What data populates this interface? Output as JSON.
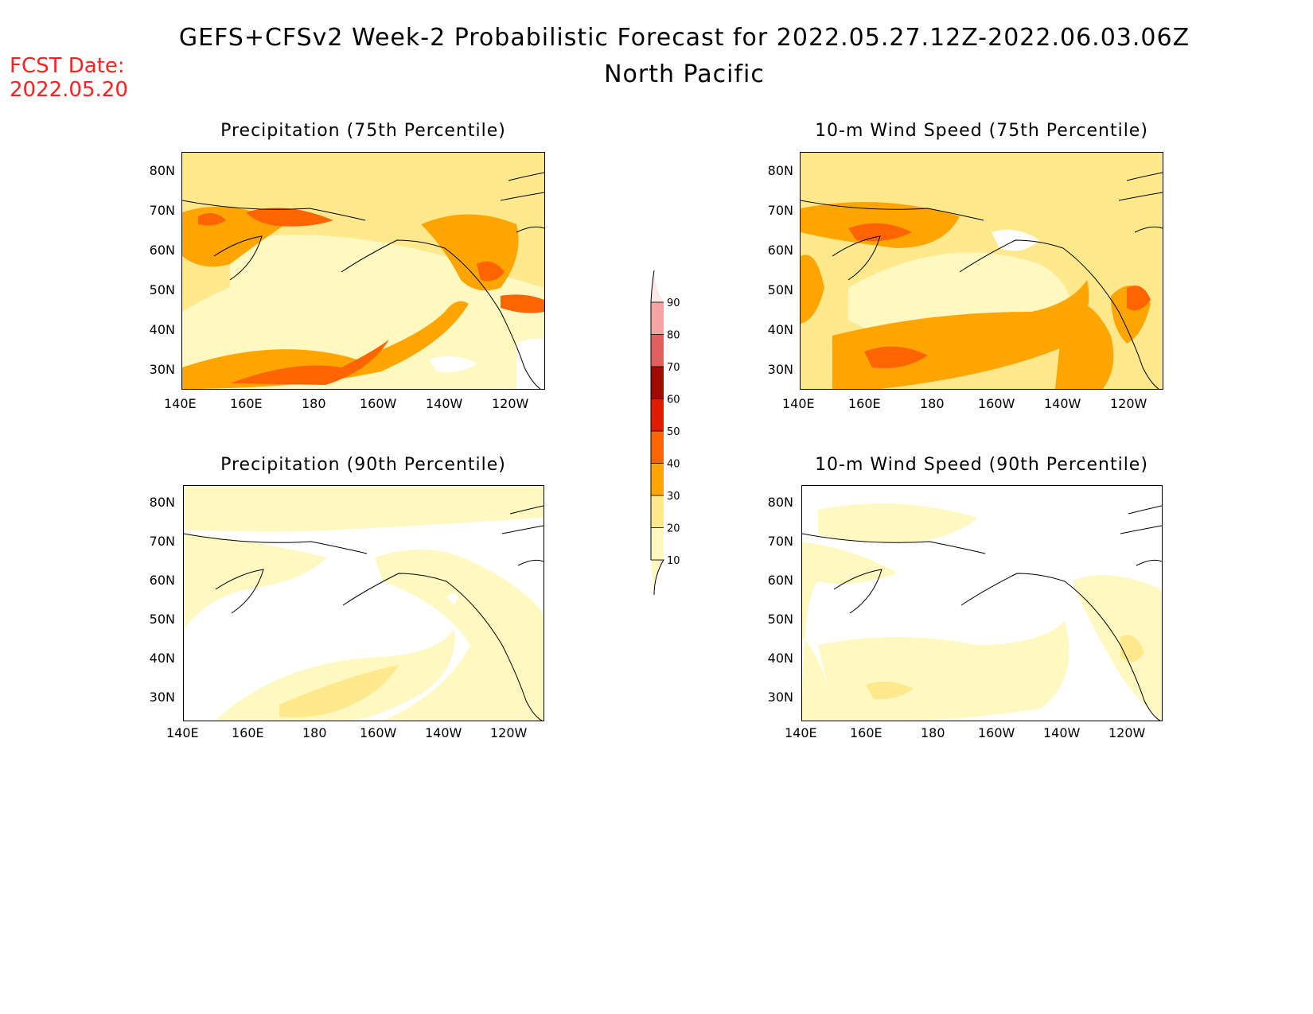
{
  "header": {
    "title": "GEFS+CFSv2 Week-2 Probabilistic Forecast for 2022.05.27.12Z-2022.06.03.06Z",
    "region": "North Pacific",
    "fcst_label": "FCST Date:",
    "fcst_date": "2022.05.20"
  },
  "colorbar": {
    "levels": [
      "10",
      "20",
      "30",
      "40",
      "50",
      "60",
      "70",
      "80",
      "90"
    ],
    "colors": [
      "#fff8c0",
      "#ffe98c",
      "#ffa500",
      "#ff6400",
      "#e01b00",
      "#a00a00",
      "#e06060",
      "#f4a4a4",
      "#fde8e8"
    ]
  },
  "panels": [
    {
      "id": "precip75",
      "title": "Precipitation (75th Percentile)",
      "intensity": "high"
    },
    {
      "id": "wind75",
      "title": "10-m Wind Speed (75th Percentile)",
      "intensity": "high"
    },
    {
      "id": "precip90",
      "title": "Precipitation (90th Percentile)",
      "intensity": "low"
    },
    {
      "id": "wind90",
      "title": "10-m Wind Speed (90th Percentile)",
      "intensity": "low"
    }
  ],
  "axes": {
    "lat_labels": [
      "80N",
      "70N",
      "60N",
      "50N",
      "40N",
      "30N"
    ],
    "lon_labels": [
      "140E",
      "160E",
      "180",
      "160W",
      "140W",
      "120W"
    ]
  }
}
